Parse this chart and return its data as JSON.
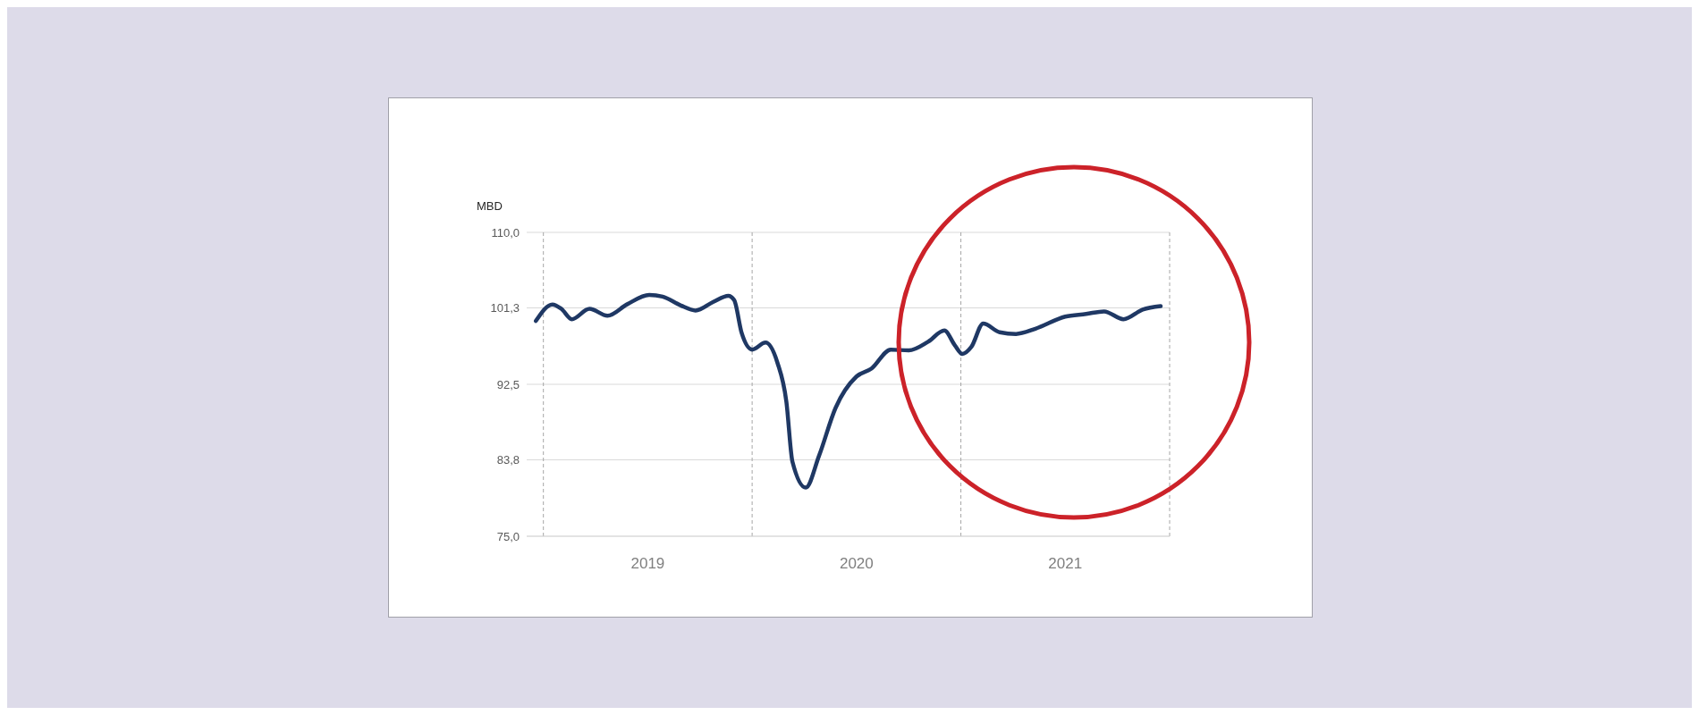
{
  "chart_data": {
    "type": "line",
    "ylabel": "MBD",
    "x": [
      2018.964,
      2019.043,
      2019.086,
      2019.136,
      2019.221,
      2019.307,
      2019.4,
      2019.507,
      2019.571,
      2019.657,
      2019.729,
      2019.814,
      2019.886,
      2019.914,
      2019.95,
      2020.0,
      2020.064,
      2020.121,
      2020.164,
      2020.193,
      2020.257,
      2020.321,
      2020.4,
      2020.5,
      2020.571,
      2020.664,
      2020.75,
      2020.843,
      2020.921,
      2020.971,
      2021.007,
      2021.05,
      2021.107,
      2021.186,
      2021.264,
      2021.357,
      2021.5,
      2021.6,
      2021.686,
      2021.779,
      2021.871,
      2021.957
    ],
    "series": [
      {
        "color": "#1f3864",
        "values": [
          99.8,
          101.7,
          101.2,
          100.0,
          101.2,
          100.4,
          101.7,
          102.8,
          102.6,
          101.6,
          101.0,
          102.0,
          102.7,
          102.2,
          98.4,
          96.5,
          97.3,
          95.0,
          90.5,
          83.6,
          80.6,
          84.3,
          89.8,
          93.4,
          94.3,
          96.5,
          96.4,
          97.4,
          98.7,
          97.0,
          96.0,
          96.8,
          99.5,
          98.5,
          98.3,
          98.9,
          100.3,
          100.6,
          100.9,
          100.0,
          101.1,
          101.5
        ]
      }
    ],
    "xlim": [
      2018.92,
      2022
    ],
    "xticks": [
      {
        "value": 2019.5,
        "label": "2019"
      },
      {
        "value": 2020.5,
        "label": "2020"
      },
      {
        "value": 2021.5,
        "label": "2021"
      }
    ],
    "ylim": [
      75,
      110
    ],
    "yticks": [
      {
        "value": 75,
        "label": "75,0"
      },
      {
        "value": 83.8,
        "label": "83,8"
      },
      {
        "value": 92.5,
        "label": "92,5"
      },
      {
        "value": 101.3,
        "label": "101,3"
      },
      {
        "value": 110,
        "label": "110,0"
      }
    ],
    "ref_lines": [
      {
        "axis": "x",
        "value": 2019,
        "color": "#a6a6a6",
        "line_style": "dashed"
      },
      {
        "axis": "x",
        "value": 2020,
        "color": "#a6a6a6",
        "line_style": "dashed"
      },
      {
        "axis": "x",
        "value": 2021,
        "color": "#a6a6a6",
        "line_style": "dashed"
      },
      {
        "axis": "x",
        "value": 2022,
        "color": "#a6a6a6",
        "line_style": "dashed"
      }
    ],
    "grid": "y",
    "legend": false,
    "marker": "none",
    "line_style": "solid"
  }
}
